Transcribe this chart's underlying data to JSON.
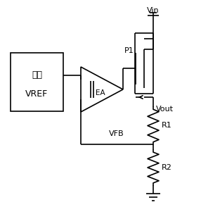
{
  "bg_color": "#ffffff",
  "line_color": "#000000",
  "fig_width": 2.86,
  "fig_height": 2.94,
  "dpi": 100,
  "labels": {
    "vin": "Vin",
    "vout": "Vout",
    "vfb": "VFB",
    "p1": "P1",
    "r1": "R1",
    "r2": "R2",
    "ea": "EA",
    "ref_line1": "基准",
    "ref_line2": "VREF"
  }
}
